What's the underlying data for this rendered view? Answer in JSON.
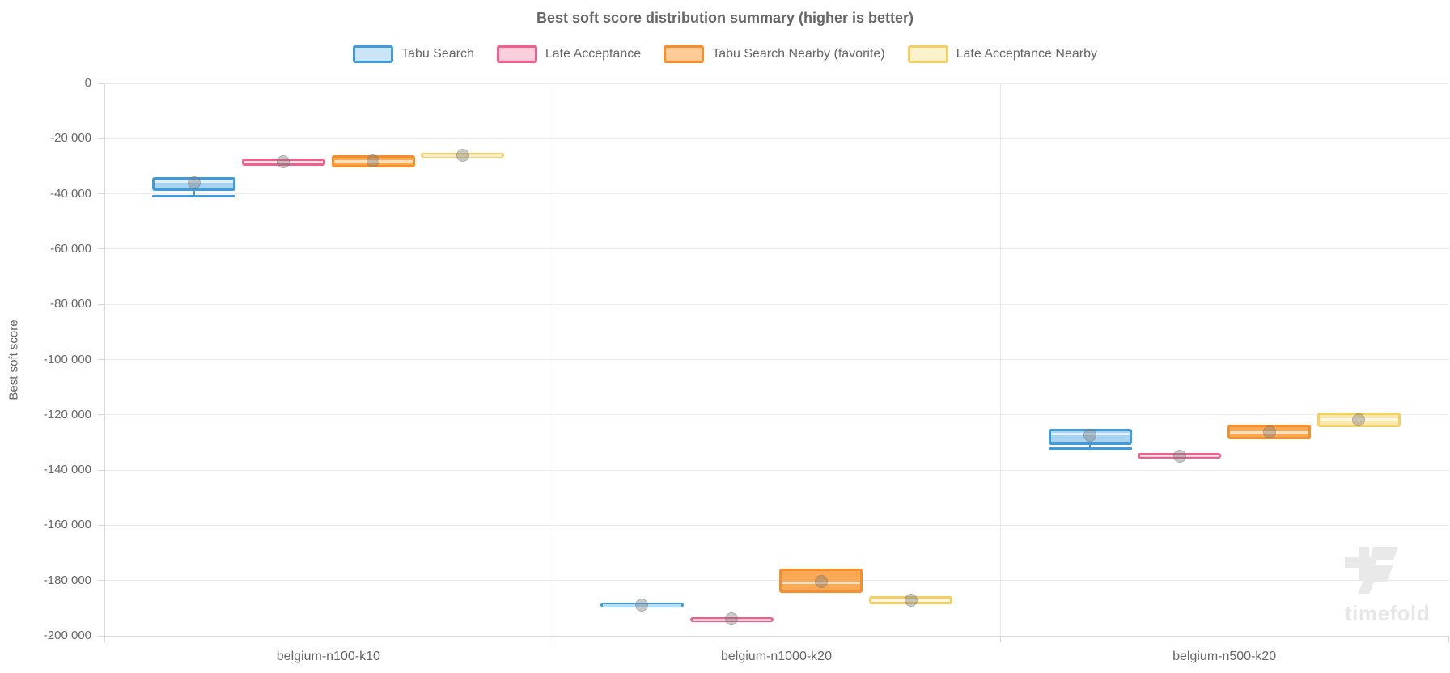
{
  "watermark": {
    "text": "timefold"
  },
  "chart_data": {
    "type": "boxplot",
    "title": "Best soft score distribution summary (higher is better)",
    "xlabel": "",
    "ylabel": "Best soft score",
    "ylim": [
      -200000,
      0
    ],
    "grid": true,
    "legend_position": "top",
    "y_ticks": [
      0,
      -20000,
      -40000,
      -60000,
      -80000,
      -100000,
      -120000,
      -140000,
      -160000,
      -180000,
      -200000
    ],
    "y_tick_labels": [
      "0",
      "-20 000",
      "-40 000",
      "-60 000",
      "-80 000",
      "-100 000",
      "-120 000",
      "-140 000",
      "-160 000",
      "-180 000",
      "-200 000"
    ],
    "categories": [
      "belgium-n100-k10",
      "belgium-n1000-k20",
      "belgium-n500-k20"
    ],
    "series": [
      {
        "name": "Tabu Search",
        "stroke": "#3f9bdb",
        "fill": "#a8d4f1",
        "boxes": [
          {
            "q3": -34000,
            "median": -35000,
            "q1": -39000,
            "whisker_low": -40600,
            "mean": -36000
          },
          {
            "q3": -187900,
            "median": -188700,
            "q1": -189700,
            "mean": -188800
          },
          {
            "q3": -125000,
            "median": -126300,
            "q1": -130900,
            "whisker_low": -132100,
            "mean": -127500
          }
        ]
      },
      {
        "name": "Late Acceptance",
        "stroke": "#f1608d",
        "fill": "#f8b1c6",
        "boxes": [
          {
            "q3": -27200,
            "median": -28400,
            "q1": -29900,
            "mean": -28500
          },
          {
            "q3": -193200,
            "median": -193900,
            "q1": -194500,
            "mean": -193900
          },
          {
            "q3": -133800,
            "median": -134900,
            "q1": -135800,
            "mean": -134900
          }
        ]
      },
      {
        "name": "Tabu Search Nearby (favorite)",
        "stroke": "#f78e2e",
        "fill": "#f9a854",
        "boxes": [
          {
            "q3": -26000,
            "median": -28100,
            "q1": -30400,
            "mean": -28200
          },
          {
            "q3": -175600,
            "median": -181000,
            "q1": -184400,
            "mean": -180300
          },
          {
            "q3": -123600,
            "median": -126300,
            "q1": -128900,
            "mean": -126300
          }
        ]
      },
      {
        "name": "Late Acceptance Nearby",
        "stroke": "#f3cf66",
        "fill": "#f9e9ae",
        "boxes": [
          {
            "q3": -25300,
            "median": -26100,
            "q1": -26900,
            "mean": -26100
          },
          {
            "q3": -185600,
            "median": -187000,
            "q1": -188500,
            "mean": -187200
          },
          {
            "q3": -119200,
            "median": -121500,
            "q1": -124500,
            "mean": -121700
          }
        ]
      }
    ]
  }
}
